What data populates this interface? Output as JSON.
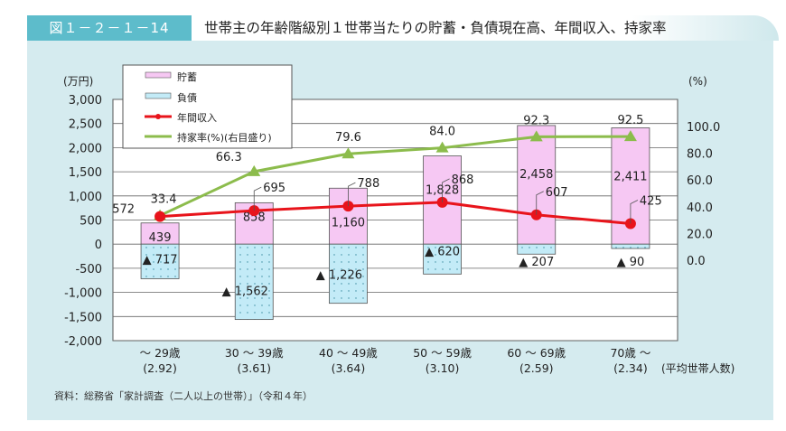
{
  "header": {
    "figure_number": "図１－２－１－14",
    "title": "世帯主の年齢階級別１世帯当たりの貯蓄・負債現在高、年間収入、持家率"
  },
  "source": "資料：総務省「家計調査（二人以上の世帯）」（令和４年）",
  "chart_data": {
    "type": "bar",
    "categories": [
      "～ 29歳",
      "30 ～ 39歳",
      "40 ～ 49歳",
      "50 ～ 59歳",
      "60 ～ 69歳",
      "70歳 ～"
    ],
    "household_sizes": [
      "(2.92)",
      "(3.61)",
      "(3.64)",
      "(3.10)",
      "(2.59)",
      "(2.34)"
    ],
    "household_size_label": "(平均世帯人数)",
    "left_axis": {
      "unit": "(万円)",
      "ylim": [
        -2000,
        3000
      ],
      "ticks": [
        "3,000",
        "2,500",
        "2,000",
        "1,500",
        "1,000",
        "500",
        "0",
        "-500",
        "-1,000",
        "-1,500",
        "-2,000"
      ],
      "tick_values": [
        3000,
        2500,
        2000,
        1500,
        1000,
        500,
        0,
        -500,
        -1000,
        -1500,
        -2000
      ]
    },
    "right_axis": {
      "unit": "(%)",
      "ylim": [
        0,
        100
      ],
      "ticks": [
        "100.0",
        "80.0",
        "60.0",
        "40.0",
        "20.0",
        "0.0"
      ],
      "tick_values": [
        100,
        80,
        60,
        40,
        20,
        0
      ]
    },
    "series": [
      {
        "name": "貯蓄",
        "type": "bar",
        "color": "#f6c8f3",
        "values": [
          439,
          858,
          1160,
          1828,
          2458,
          2411
        ],
        "labels": [
          "439",
          "858",
          "1,160",
          "1,828",
          "2,458",
          "2,411"
        ]
      },
      {
        "name": "負債",
        "type": "bar",
        "color": "#c3ebf7",
        "values": [
          -717,
          -1562,
          -1226,
          -620,
          -207,
          -90
        ],
        "labels": [
          "▲ 717",
          "▲ 1,562",
          "▲ 1,226",
          "▲ 620",
          "▲ 207",
          "▲ 90"
        ]
      },
      {
        "name": "年間収入",
        "type": "line",
        "color": "#e8141b",
        "values": [
          572,
          695,
          788,
          868,
          607,
          425
        ],
        "labels": [
          "572",
          "695",
          "788",
          "868",
          "607",
          "425"
        ]
      },
      {
        "name": "持家率(%)(右目盛り)",
        "type": "line",
        "axis": "right",
        "color": "#8cbc4c",
        "values": [
          33.4,
          66.3,
          79.6,
          84.0,
          92.3,
          92.5
        ],
        "labels": [
          "33.4",
          "66.3",
          "79.6",
          "84.0",
          "92.3",
          "92.5"
        ]
      }
    ],
    "grid": true,
    "legend": "top-left"
  }
}
